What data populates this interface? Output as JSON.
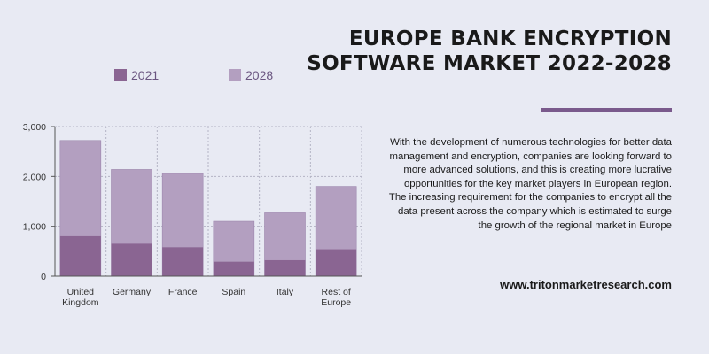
{
  "title_lines": [
    "EUROPE BANK ENCRYPTION",
    "SOFTWARE MARKET 2022-2028"
  ],
  "description": "With the development of numerous technologies for better data management and encryption, companies are looking forward to more advanced solutions, and this is creating more lucrative opportunities for the key market players in European region. The increasing requirement for the companies to encrypt all the data present across the company which is estimated to surge the growth of the regional market in Europe",
  "website": "www.tritonmarketresearch.com",
  "colors": {
    "series_2021": "#8a6592",
    "series_2028": "#b39fc0",
    "accent": "#7a5a8c",
    "gridline": "#b4b4c4",
    "axis": "#555555"
  },
  "chart_data": {
    "type": "bar",
    "stacked_overlay": true,
    "categories": [
      "United Kingdom",
      "Germany",
      "France",
      "Spain",
      "Italy",
      "Rest of Europe"
    ],
    "category_labels": [
      [
        "United",
        "Kingdom"
      ],
      [
        "Germany"
      ],
      [
        "France"
      ],
      [
        "Spain"
      ],
      [
        "Italy"
      ],
      [
        "Rest of",
        "Europe"
      ]
    ],
    "series": [
      {
        "name": "2021",
        "values": [
          800,
          650,
          580,
          290,
          320,
          540
        ]
      },
      {
        "name": "2028",
        "values": [
          2720,
          2140,
          2060,
          1100,
          1270,
          1800
        ]
      }
    ],
    "ylim": [
      0,
      3000
    ],
    "yticks": [
      0,
      1000,
      2000,
      3000
    ],
    "ytick_labels": [
      "0",
      "1,000",
      "2,000",
      "3,000"
    ],
    "grid": true,
    "legend_position": "top"
  }
}
